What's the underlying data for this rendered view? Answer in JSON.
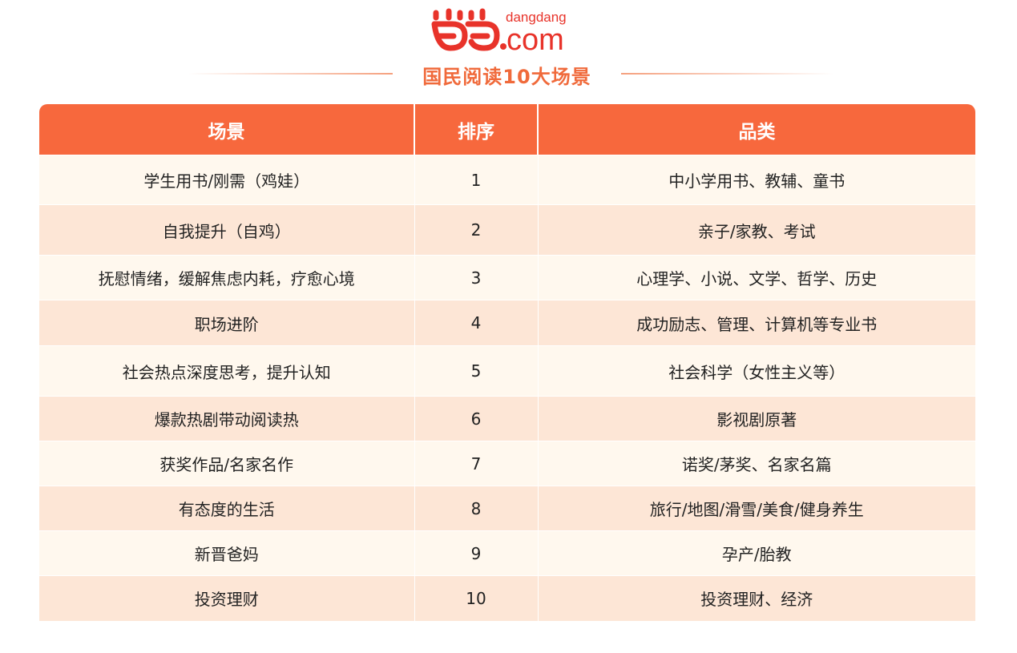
{
  "logo": {
    "glyph": "当当",
    "domain": ".com",
    "brand": "dangdang",
    "color": "#e8332a"
  },
  "title": "国民阅读10大场景",
  "colors": {
    "header": "#f7683d",
    "row_odd": "#fff8ee",
    "row_even": "#fde6d6",
    "title": "#f06a3b"
  },
  "table": {
    "headers": [
      "场景",
      "排序",
      "品类"
    ],
    "rows": [
      {
        "scene": "学生用书/刚需（鸡娃）",
        "rank": "1",
        "category": "中小学用书、教辅、童书"
      },
      {
        "scene": "自我提升（自鸡）",
        "rank": "2",
        "category": "亲子/家教、考试"
      },
      {
        "scene": "抚慰情绪，缓解焦虑内耗，疗愈心境",
        "rank": "3",
        "category": "心理学、小说、文学、哲学、历史"
      },
      {
        "scene": "职场进阶",
        "rank": "4",
        "category": "成功励志、管理、计算机等专业书"
      },
      {
        "scene": "社会热点深度思考，提升认知",
        "rank": "5",
        "category": "社会科学（女性主义等）"
      },
      {
        "scene": "爆款热剧带动阅读热",
        "rank": "6",
        "category": "影视剧原著"
      },
      {
        "scene": "获奖作品/名家名作",
        "rank": "7",
        "category": "诺奖/茅奖、名家名篇"
      },
      {
        "scene": "有态度的生活",
        "rank": "8",
        "category": "旅行/地图/滑雪/美食/健身养生"
      },
      {
        "scene": "新晋爸妈",
        "rank": "9",
        "category": "孕产/胎教"
      },
      {
        "scene": "投资理财",
        "rank": "10",
        "category": "投资理财、经济"
      }
    ]
  }
}
